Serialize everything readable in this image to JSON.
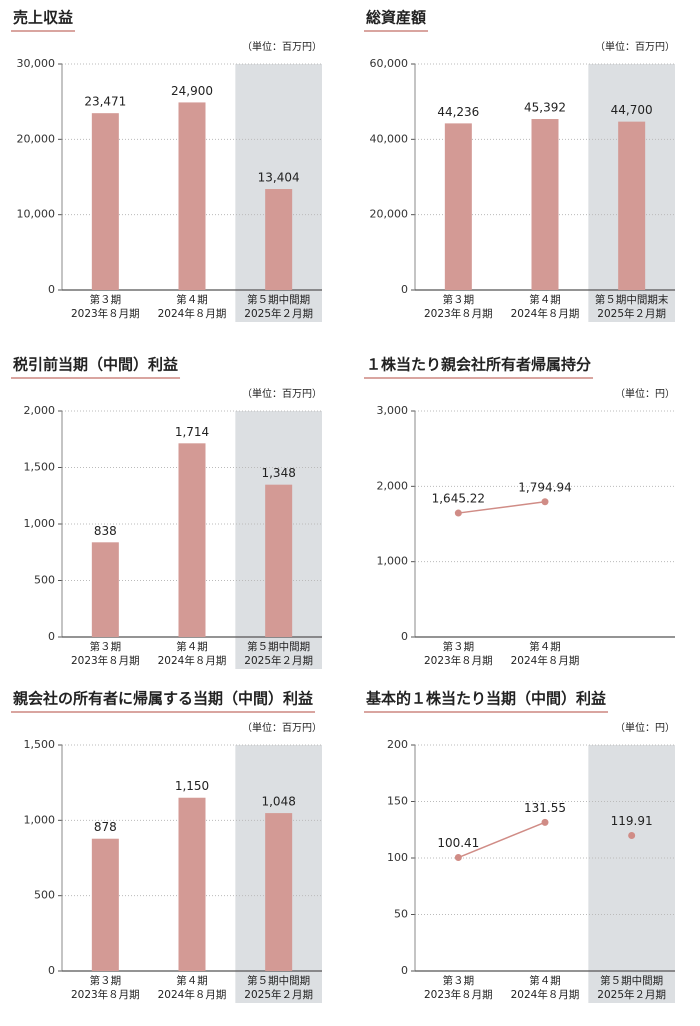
{
  "chart_data": [
    {
      "type": "bar",
      "title": "売上収益",
      "unit": "（単位：百万円）",
      "categories": [
        [
          "第３期",
          "2023年８月期"
        ],
        [
          "第４期",
          "2024年８月期"
        ],
        [
          "第５期中間期",
          "2025年２月期"
        ]
      ],
      "values": [
        23471,
        24900,
        13404
      ],
      "value_labels": [
        "23,471",
        "24,900",
        "13,404"
      ],
      "ylim": [
        0,
        30000
      ],
      "yticks": [
        0,
        {
          "value": 10000,
          "label": "10,000"
        },
        {
          "value": 20000,
          "label": "20,000"
        },
        {
          "value": 30000,
          "label": "30,000"
        }
      ],
      "color": "#d39a95",
      "shaded": [
        2
      ],
      "shade_color": "#dcdfe2"
    },
    {
      "type": "bar",
      "title": "総資産額",
      "unit": "（単位：百万円）",
      "categories": [
        [
          "第３期",
          "2023年８月期"
        ],
        [
          "第４期",
          "2024年８月期"
        ],
        [
          "第５期中間期末",
          "2025年２月期"
        ]
      ],
      "values": [
        44236,
        45392,
        44700
      ],
      "value_labels": [
        "44,236",
        "45,392",
        "44,700"
      ],
      "ylim": [
        0,
        60000
      ],
      "yticks": [
        0,
        {
          "value": 20000,
          "label": "20,000"
        },
        {
          "value": 40000,
          "label": "40,000"
        },
        {
          "value": 60000,
          "label": "60,000"
        }
      ],
      "color": "#d39a95",
      "shaded": [
        2
      ],
      "shade_color": "#dcdfe2"
    },
    {
      "type": "bar",
      "title": "税引前当期（中間）利益",
      "unit": "（単位：百万円）",
      "categories": [
        [
          "第３期",
          "2023年８月期"
        ],
        [
          "第４期",
          "2024年８月期"
        ],
        [
          "第５期中間期",
          "2025年２月期"
        ]
      ],
      "values": [
        838,
        1714,
        1348
      ],
      "value_labels": [
        "838",
        "1,714",
        "1,348"
      ],
      "ylim": [
        0,
        2000
      ],
      "yticks": [
        0,
        500,
        {
          "value": 1000,
          "label": "1,000"
        },
        {
          "value": 1500,
          "label": "1,500"
        },
        {
          "value": 2000,
          "label": "2,000"
        }
      ],
      "color": "#d39a95",
      "shaded": [
        2
      ],
      "shade_color": "#dcdfe2"
    },
    {
      "type": "line",
      "title": "１株当たり親会社所有者帰属持分",
      "unit": "（単位：円）",
      "categories": [
        [
          "第３期",
          "2023年８月期"
        ],
        [
          "第４期",
          "2024年８月期"
        ],
        null
      ],
      "values": [
        1645.22,
        1794.94,
        null
      ],
      "value_labels": [
        "1,645.22",
        "1,794.94",
        null
      ],
      "ylim": [
        0,
        3000
      ],
      "yticks": [
        0,
        {
          "value": 1000,
          "label": "1,000"
        },
        {
          "value": 2000,
          "label": "2,000"
        },
        {
          "value": 3000,
          "label": "3,000"
        }
      ],
      "color": "#d08c86",
      "shaded": [],
      "shade_color": "#dcdfe2"
    },
    {
      "type": "bar",
      "title": "親会社の所有者に帰属する当期（中間）利益",
      "unit": "（単位：百万円）",
      "categories": [
        [
          "第３期",
          "2023年８月期"
        ],
        [
          "第４期",
          "2024年８月期"
        ],
        [
          "第５期中間期",
          "2025年２月期"
        ]
      ],
      "values": [
        878,
        1150,
        1048
      ],
      "value_labels": [
        "878",
        "1,150",
        "1,048"
      ],
      "ylim": [
        0,
        1500
      ],
      "yticks": [
        0,
        500,
        {
          "value": 1000,
          "label": "1,000"
        },
        {
          "value": 1500,
          "label": "1,500"
        }
      ],
      "color": "#d39a95",
      "shaded": [
        2
      ],
      "shade_color": "#dcdfe2"
    },
    {
      "type": "line",
      "title": "基本的１株当たり当期（中間）利益",
      "unit": "（単位：円）",
      "categories": [
        [
          "第３期",
          "2023年８月期"
        ],
        [
          "第４期",
          "2024年８月期"
        ],
        [
          "第５期中間期",
          "2025年２月期"
        ]
      ],
      "values": [
        100.41,
        131.55,
        119.91
      ],
      "ylim": [
        0,
        200
      ],
      "yticks": [
        0,
        50,
        100,
        150,
        200
      ],
      "color": "#d08c86",
      "shaded": [
        2
      ],
      "shade_color": "#dcdfe2"
    }
  ]
}
